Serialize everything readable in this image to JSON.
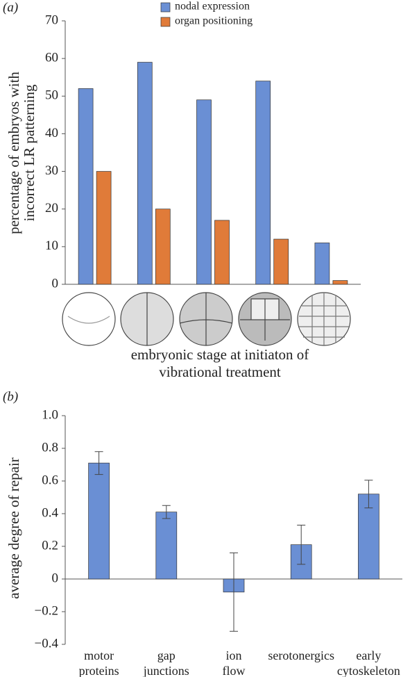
{
  "chart_data": [
    {
      "type": "bar",
      "panel_label": "(a)",
      "ylabel": [
        "percentage of embryos with",
        "incorrect LR patterning"
      ],
      "xlabel": [
        "embryonic stage at initiaton of",
        "vibrational treatment"
      ],
      "categories": [
        null,
        null,
        null,
        null,
        null
      ],
      "series": [
        {
          "name": "nodal expression",
          "color": "#6a8fd4",
          "values": [
            52,
            59,
            49,
            54,
            11
          ]
        },
        {
          "name": "organ positioning",
          "color": "#e07b39",
          "values": [
            30,
            20,
            17,
            12,
            1
          ]
        }
      ],
      "ylim": [
        0,
        70
      ],
      "yticks": [
        0,
        10,
        20,
        30,
        40,
        50,
        60,
        70
      ],
      "legend": "top"
    },
    {
      "type": "bar",
      "panel_label": "(b)",
      "ylabel": "average degree of repair",
      "categories": [
        [
          "motor",
          "proteins"
        ],
        [
          "gap",
          "junctions"
        ],
        [
          "ion",
          "flow"
        ],
        [
          "serotonergics"
        ],
        [
          "early",
          "cytoskeleton"
        ]
      ],
      "values": [
        0.71,
        0.41,
        -0.08,
        0.21,
        0.52
      ],
      "errors": [
        0.07,
        0.04,
        0.24,
        0.12,
        0.085
      ],
      "color": "#6a8fd4",
      "ylim": [
        -0.4,
        1.0
      ],
      "yticks": [
        {
          "value": 1.0,
          "label": "1.0"
        },
        0.8,
        0.6,
        0.4,
        0.2,
        0,
        {
          "value": -0.2,
          "label": "−0.2"
        },
        {
          "value": -0.4,
          "label": "−0.4"
        }
      ]
    }
  ]
}
